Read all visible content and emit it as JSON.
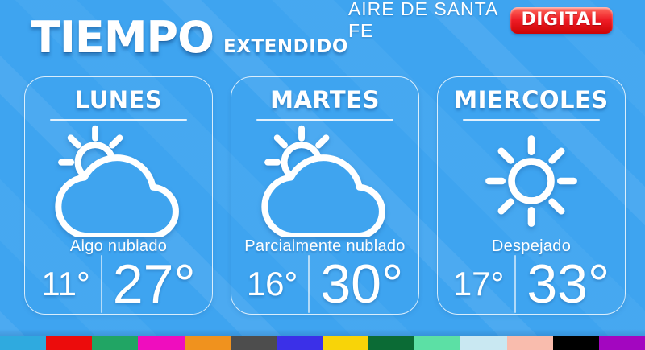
{
  "header": {
    "logo_main": "TIEMPO",
    "logo_sub": "EXTENDIDO",
    "brand": "AIRE DE SANTA FE",
    "badge_label": "DIGITAL"
  },
  "forecast": {
    "days": [
      {
        "name": "LUNES",
        "icon": "sun-behind-cloud-icon",
        "condition": "Algo nublado",
        "temp_min": "11°",
        "temp_max": "27°"
      },
      {
        "name": "MARTES",
        "icon": "sun-behind-cloud-icon",
        "condition": "Parcialmente nublado",
        "temp_min": "16°",
        "temp_max": "30°"
      },
      {
        "name": "MIERCOLES",
        "icon": "sun-icon",
        "condition": "Despejado",
        "temp_min": "17°",
        "temp_max": "33°"
      }
    ]
  },
  "colors": {
    "background": "#3ea4f0",
    "badge_red": "#ee1c25",
    "bottom_stripe": [
      "#2faadf",
      "#ec0c0c",
      "#21a564",
      "#ef0dbe",
      "#f0921e",
      "#4d4d4d",
      "#3b30e8",
      "#f8d408",
      "#0b6b35",
      "#5ce0a5",
      "#c9e8f2",
      "#f9bcad",
      "#000000",
      "#a306c0"
    ]
  }
}
